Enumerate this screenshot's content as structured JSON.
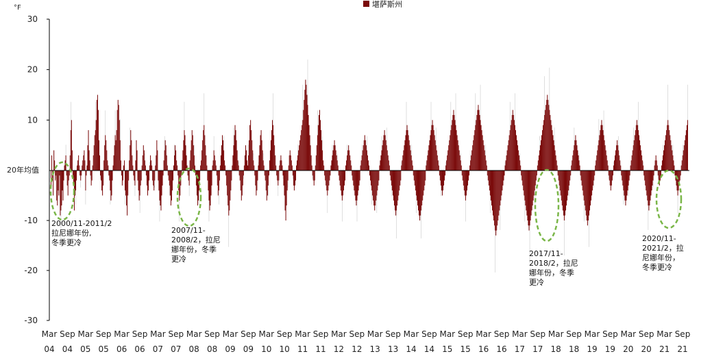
{
  "chart_data": {
    "type": "bar",
    "unit_label": "°F",
    "legend_label": "堪萨斯州",
    "baseline_label": "20年均值",
    "colors": {
      "bar": "#7a0a0a",
      "thin": "#c9c9c9",
      "axis": "#000000",
      "ellipse": "#7ab648"
    },
    "ylim": [
      -30,
      30
    ],
    "yticks": [
      "30",
      "20",
      "10",
      "-10",
      "-20",
      "-30"
    ],
    "ytick_values": [
      30,
      20,
      10,
      -10,
      -20,
      -30
    ],
    "xtick_months": [
      "Mar",
      "Sep",
      "Mar",
      "Sep",
      "Mar",
      "Sep",
      "Mar",
      "Sep",
      "Mar",
      "Sep",
      "Mar",
      "Sep",
      "Mar",
      "Sep",
      "Mar",
      "Sep",
      "Mar",
      "Sep",
      "Mar",
      "Sep",
      "Mar",
      "Sep",
      "Mar",
      "Sep",
      "Mar",
      "Sep",
      "Mar",
      "Sep",
      "Mar",
      "Sep",
      "Mar",
      "Sep",
      "Mar",
      "Sep",
      "Mar",
      "Sep"
    ],
    "xtick_years": [
      "04",
      "04",
      "05",
      "05",
      "06",
      "06",
      "07",
      "07",
      "08",
      "08",
      "09",
      "09",
      "10",
      "10",
      "11",
      "11",
      "12",
      "12",
      "13",
      "13",
      "14",
      "14",
      "15",
      "15",
      "16",
      "16",
      "17",
      "17",
      "18",
      "18",
      "19",
      "19",
      "20",
      "20",
      "21",
      "21"
    ],
    "weekly_anomaly_series": [
      {
        "name": "堪萨斯州",
        "start": "2004-03",
        "values": [
          -3,
          3,
          -2,
          -5,
          4,
          2,
          -2,
          -1,
          -6,
          -7,
          -4,
          -5,
          -1,
          -9,
          -8,
          -7,
          -4,
          -6,
          -2,
          1,
          2,
          3,
          -1,
          -3,
          -5,
          -2,
          -1,
          3,
          8,
          10,
          4,
          -1,
          -3,
          -8,
          -5,
          -4,
          -2,
          1,
          2,
          3,
          1,
          -1,
          -2,
          -1,
          1,
          2,
          3,
          4,
          2,
          -4,
          -1,
          1,
          5,
          8,
          4,
          2,
          -1,
          -3,
          -2,
          1,
          3,
          5,
          7,
          8,
          10,
          14,
          15,
          12,
          6,
          3,
          -1,
          -2,
          -4,
          -5,
          -3,
          2,
          5,
          7,
          6,
          4,
          2,
          1,
          -1,
          -2,
          -4,
          -6,
          -5,
          -2,
          1,
          3,
          5,
          7,
          6,
          8,
          12,
          14,
          13,
          10,
          6,
          2,
          -1,
          -3,
          -2,
          1,
          2,
          -4,
          -5,
          -7,
          -9,
          -5,
          -2,
          2,
          5,
          8,
          6,
          3,
          1,
          -1,
          -2,
          -3,
          2,
          6,
          4,
          -2,
          -4,
          -6,
          -5,
          -3,
          -2,
          1,
          3,
          5,
          4,
          2,
          1,
          -1,
          -3,
          -5,
          -4,
          -2,
          1,
          3,
          2,
          1,
          -2,
          -3,
          -4,
          -2,
          1,
          3,
          6,
          4,
          -2,
          -4,
          -6,
          -7,
          -8,
          -5,
          -3,
          -1,
          2,
          4,
          6,
          5,
          3,
          1,
          -1,
          -2,
          -3,
          -5,
          -7,
          -6,
          -4,
          -2,
          1,
          3,
          5,
          4,
          2,
          1,
          -1,
          -4,
          -6,
          -5,
          -3,
          -1,
          2,
          4,
          6,
          8,
          7,
          5,
          3,
          1,
          -1,
          -2,
          -3,
          2,
          4,
          6,
          8,
          7,
          5,
          3,
          1,
          -1,
          -3,
          -5,
          -7,
          -6,
          -4,
          -2,
          1,
          2,
          4,
          6,
          8,
          9,
          7,
          5,
          3,
          1,
          -2,
          -4,
          -6,
          -8,
          -7,
          -5,
          -3,
          1,
          2,
          4,
          3,
          2,
          1,
          -1,
          -3,
          -5,
          -4,
          -2,
          1,
          3,
          5,
          7,
          6,
          4,
          2,
          1,
          -1,
          -3,
          -5,
          -7,
          -9,
          -8,
          -6,
          -4,
          -2,
          1,
          3,
          5,
          7,
          9,
          8,
          6,
          4,
          2,
          1,
          -1,
          -2,
          -4,
          -6,
          -5,
          -3,
          -1,
          1,
          3,
          5,
          4,
          2,
          1,
          3,
          6,
          9,
          10,
          8,
          6,
          4,
          2,
          1,
          -1,
          -3,
          -5,
          -4,
          -2,
          1,
          3,
          5,
          7,
          8,
          6,
          4,
          2,
          1,
          -1,
          -2,
          -4,
          -6,
          -5,
          -3,
          -1,
          2,
          4,
          6,
          8,
          10,
          9,
          7,
          5,
          3,
          1,
          -1,
          -2,
          -3,
          -2,
          1,
          2,
          3,
          2,
          1,
          -1,
          -3,
          -5,
          -8,
          -10,
          -7,
          -4,
          -2,
          1,
          3,
          4,
          3,
          2,
          1,
          -1,
          -3,
          -4,
          -3,
          -2,
          1,
          2,
          3,
          4,
          5,
          6,
          7,
          8,
          9,
          10,
          12,
          14,
          16,
          18,
          17,
          15,
          13,
          11,
          9,
          7,
          5,
          3,
          1,
          -1,
          -2,
          -3,
          -2,
          1,
          3,
          5,
          7,
          9,
          11,
          12,
          10,
          8,
          6,
          4,
          2,
          1,
          -1,
          -2,
          -3,
          -4,
          -5,
          -4,
          -3,
          -2,
          -1,
          1,
          2,
          3,
          4,
          5,
          6,
          5,
          4,
          3,
          2,
          1,
          -1,
          -2,
          -3,
          -4,
          -5,
          -6,
          -5,
          -4,
          -3,
          -2,
          1,
          2,
          3,
          4,
          5,
          4,
          3,
          2,
          1,
          -1,
          -2,
          -3,
          -4,
          -5,
          -6,
          -7,
          -6,
          -5,
          -4,
          -3,
          -2,
          1,
          2,
          3,
          4,
          5,
          6,
          7,
          6,
          5,
          4,
          3,
          2,
          1,
          -1,
          -2,
          -3,
          -4,
          -5,
          -6,
          -7,
          -8,
          -7,
          -6,
          -5,
          -4,
          -3,
          -2,
          1,
          2,
          3,
          4,
          5,
          6,
          7,
          8,
          7,
          6,
          5,
          4,
          3,
          2,
          1,
          -1,
          -2,
          -3,
          -4,
          -5,
          -6,
          -7,
          -8,
          -9,
          -8,
          -7,
          -6,
          -5,
          -4,
          -3,
          -2,
          1,
          2,
          3,
          4,
          5,
          6,
          7,
          8,
          9,
          8,
          7,
          6,
          5,
          4,
          3,
          2,
          1,
          -1,
          -2,
          -3,
          -4,
          -5,
          -6,
          -7,
          -8,
          -9,
          -10,
          -9,
          -8,
          -7,
          -6,
          -5,
          -4,
          -3,
          -2,
          1,
          2,
          3,
          4,
          5,
          6,
          7,
          8,
          9,
          10,
          9,
          8,
          7,
          6,
          5,
          4,
          3,
          2,
          1,
          -1,
          -2,
          -3,
          -4,
          -5,
          -4,
          -3,
          -2,
          -1,
          1,
          2,
          3,
          4,
          5,
          6,
          7,
          8,
          9,
          10,
          11,
          12,
          11,
          10,
          9,
          8,
          7,
          6,
          5,
          4,
          3,
          2,
          1,
          -1,
          -2,
          -3,
          -4,
          -5,
          -6,
          -5,
          -4,
          -3,
          -2,
          -1,
          1,
          2,
          3,
          4,
          5,
          6,
          7,
          8,
          9,
          10,
          11,
          12,
          13,
          12,
          11,
          10,
          9,
          8,
          7,
          6,
          5,
          4,
          3,
          2,
          1,
          -1,
          -2,
          -3,
          -4,
          -5,
          -6,
          -7,
          -8,
          -9,
          -10,
          -11,
          -12,
          -13,
          -12,
          -11,
          -10,
          -9,
          -8,
          -7,
          -6,
          -5,
          -4,
          -3,
          -2,
          -1,
          1,
          2,
          3,
          4,
          5,
          6,
          7,
          8,
          9,
          10,
          11,
          12,
          11,
          10,
          9,
          8,
          7,
          6,
          5,
          4,
          3,
          2,
          1,
          -1,
          -2,
          -3,
          -4,
          -5,
          -6,
          -7,
          -8,
          -9,
          -10,
          -11,
          -12,
          -11,
          -10,
          -9,
          -8,
          -7,
          -6,
          -5,
          -4,
          -3,
          -2,
          -1,
          1,
          2,
          3,
          4,
          5,
          6,
          7,
          8,
          9,
          10,
          11,
          12,
          13,
          14,
          15,
          14,
          13,
          12,
          11,
          10,
          9,
          8,
          7,
          6,
          5,
          4,
          3,
          2,
          1,
          -1,
          -2,
          -3,
          -4,
          -5,
          -6,
          -7,
          -8,
          -9,
          -10,
          -9,
          -8,
          -7,
          -6,
          -5,
          -4,
          -3,
          -2,
          -1,
          1,
          2,
          3,
          4,
          5,
          6,
          7,
          6,
          5,
          4,
          3,
          2,
          1,
          -1,
          -2,
          -3,
          -4,
          -5,
          -6,
          -7,
          -8,
          -9,
          -10,
          -11,
          -10,
          -9,
          -8,
          -7,
          -6,
          -5,
          -4,
          -3,
          -2,
          -1,
          1,
          2,
          3,
          4,
          5,
          6,
          7,
          8,
          9,
          10,
          9,
          8,
          7,
          6,
          5,
          4,
          3,
          2,
          1,
          -1,
          -2,
          -3,
          -4,
          -3,
          -2,
          -1,
          1,
          2,
          3,
          4,
          5,
          6,
          5,
          4,
          3,
          2,
          1,
          -1,
          -2,
          -3,
          -4,
          -5,
          -6,
          -7,
          -6,
          -5,
          -4,
          -3,
          -2,
          -1,
          1,
          2,
          3,
          4,
          5,
          6,
          7,
          8,
          9,
          10,
          9,
          8,
          7,
          6,
          5,
          4,
          3,
          2,
          1,
          -1,
          -2,
          -3,
          -4,
          -5,
          -6,
          -7,
          -8,
          -7,
          -6,
          -5,
          -4,
          -3,
          -2,
          -1,
          1,
          2,
          3,
          2,
          1,
          -1,
          -2,
          -3,
          -2,
          -1,
          1,
          2,
          3,
          4,
          5,
          6,
          7,
          8,
          9,
          10,
          9,
          8,
          7,
          6,
          5,
          4,
          3,
          2,
          1,
          -1,
          -2,
          -3,
          -4,
          -5,
          -4,
          -3,
          -2,
          -1,
          1,
          2,
          3,
          4,
          5,
          6,
          7,
          8,
          9,
          10
        ]
      }
    ],
    "annotations": [
      {
        "lines": [
          "2000/11-2011/2",
          "拉尼娜年份,",
          "冬季更冷"
        ]
      },
      {
        "lines": [
          "2007/11-",
          "2008/2，拉尼",
          "娜年份，冬季",
          "更冷"
        ]
      },
      {
        "lines": [
          "2017/11-",
          "2018/2，拉尼",
          "娜年份，冬季",
          "更冷"
        ]
      },
      {
        "lines": [
          "2020/11-",
          "2021/2，拉",
          "尼娜年份，",
          "冬季更冷"
        ]
      }
    ]
  }
}
